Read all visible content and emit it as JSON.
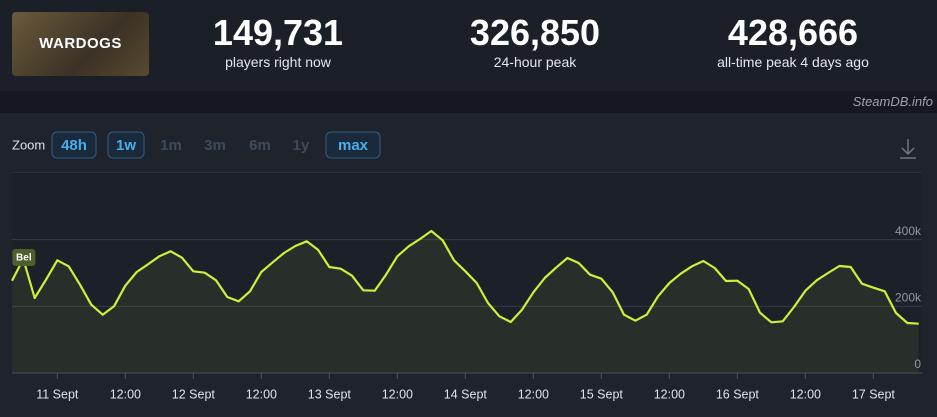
{
  "header": {
    "logo": "WARDOGS",
    "stats": [
      {
        "value": "149,731",
        "label": "players right now"
      },
      {
        "value": "326,850",
        "label": "24-hour peak"
      },
      {
        "value": "428,666",
        "label": "all-time peak 4 days ago"
      }
    ]
  },
  "source": "SteamDB.info",
  "zoom": {
    "label": "Zoom",
    "options": [
      "48h",
      "1w",
      "1m",
      "3m",
      "6m",
      "1y",
      "max"
    ],
    "enabled": [
      true,
      true,
      false,
      false,
      false,
      false,
      true
    ]
  },
  "chart_data": {
    "type": "line",
    "color": "#cdf03a",
    "categories": [
      null,
      null,
      null,
      null,
      "11 Sept",
      null,
      null,
      null,
      null,
      null,
      "12:00",
      null,
      null,
      null,
      null,
      null,
      "12 Sept",
      null,
      null,
      null,
      null,
      null,
      "12:00",
      null,
      null,
      null,
      null,
      null,
      "13 Sept",
      null,
      null,
      null,
      null,
      null,
      "12:00",
      null,
      null,
      null,
      null,
      null,
      "14 Sept",
      null,
      null,
      null,
      null,
      null,
      "12:00",
      null,
      null,
      null,
      null,
      null,
      "15 Sept",
      null,
      null,
      null,
      null,
      null,
      "12:00",
      null,
      null,
      null,
      null,
      null,
      "16 Sept",
      null,
      null,
      null,
      null,
      null,
      "12:00",
      null,
      null,
      null,
      null,
      null,
      "17 Sept",
      null,
      null,
      null,
      null
    ],
    "values": [
      277000,
      342000,
      225000,
      280000,
      338000,
      320000,
      265000,
      205000,
      175000,
      200000,
      262000,
      303000,
      326000,
      350000,
      365000,
      346000,
      305000,
      301000,
      278000,
      228000,
      215000,
      245000,
      303000,
      332000,
      360000,
      381000,
      395000,
      370000,
      318000,
      313000,
      292000,
      248000,
      247000,
      295000,
      350000,
      380000,
      402000,
      426000,
      398000,
      338000,
      305000,
      270000,
      210000,
      170000,
      153000,
      190000,
      242000,
      285000,
      316000,
      345000,
      330000,
      295000,
      283000,
      242000,
      175000,
      157000,
      175000,
      230000,
      270000,
      298000,
      320000,
      336000,
      315000,
      276000,
      277000,
      252000,
      181000,
      152000,
      155000,
      198000,
      247000,
      278000,
      300000,
      321000,
      318000,
      268000,
      256000,
      245000,
      180000,
      150000,
      148000
    ],
    "ylim": [
      0,
      600000
    ],
    "yticks": [
      0,
      {
        "value": 200000,
        "label": "200k"
      },
      {
        "value": 400000,
        "label": "400k"
      }
    ],
    "grid": true,
    "annotations": [
      {
        "index": 1,
        "text": "Bel"
      }
    ]
  }
}
